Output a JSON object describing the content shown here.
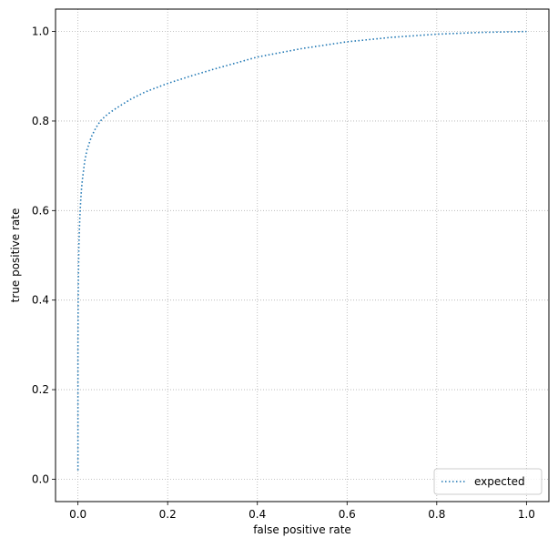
{
  "chart_data": {
    "type": "line",
    "title": "",
    "xlabel": "false positive rate",
    "ylabel": "true positive rate",
    "xlim": [
      -0.05,
      1.05
    ],
    "ylim": [
      -0.05,
      1.05
    ],
    "xticks": [
      0.0,
      0.2,
      0.4,
      0.6,
      0.8,
      1.0
    ],
    "xtick_labels": [
      "0.0",
      "0.2",
      "0.4",
      "0.6",
      "0.8",
      "1.0"
    ],
    "yticks": [
      0.0,
      0.2,
      0.4,
      0.6,
      0.8,
      1.0
    ],
    "ytick_labels": [
      "0.0",
      "0.2",
      "0.4",
      "0.6",
      "0.8",
      "1.0"
    ],
    "grid": true,
    "grid_style": "dotted",
    "legend_position": "lower-right",
    "series": [
      {
        "name": "expected",
        "color": "#1f77b4",
        "line_style": "dotted",
        "x": [
          0.0,
          0.0,
          0.0005,
          0.001,
          0.002,
          0.004,
          0.006,
          0.008,
          0.01,
          0.015,
          0.02,
          0.03,
          0.04,
          0.05,
          0.06,
          0.07,
          0.08,
          0.1,
          0.12,
          0.15,
          0.2,
          0.25,
          0.3,
          0.4,
          0.5,
          0.6,
          0.7,
          0.8,
          0.9,
          0.95,
          1.0
        ],
        "y": [
          0.02,
          0.3,
          0.4,
          0.45,
          0.52,
          0.58,
          0.62,
          0.65,
          0.67,
          0.71,
          0.735,
          0.765,
          0.785,
          0.8,
          0.81,
          0.818,
          0.825,
          0.838,
          0.85,
          0.865,
          0.884,
          0.9,
          0.915,
          0.943,
          0.962,
          0.977,
          0.987,
          0.994,
          0.998,
          0.999,
          1.0
        ]
      }
    ]
  }
}
